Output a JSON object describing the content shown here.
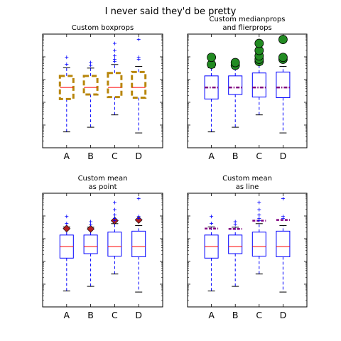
{
  "figure_title": "I never said they'd be pretty",
  "chart_data": [
    {
      "type": "box",
      "title": "Custom boxprops",
      "categories": [
        "A",
        "B",
        "C",
        "D"
      ],
      "yscale": "log",
      "ylim": [
        0.1,
        10000
      ],
      "ytick_labels": "none",
      "style": {
        "box_color": "#b8860b",
        "box_dash": "dashed",
        "median_color": "#ff0000",
        "median_dash": "solid",
        "whisker_color": "#0000ff",
        "flier_marker": "+",
        "flier_color": "#0000ff"
      },
      "series": [
        {
          "name": "A",
          "whislo": 0.5,
          "q1": 14,
          "med": 45,
          "q3": 145,
          "whishi": 330,
          "fliers": [
            470,
            950
          ]
        },
        {
          "name": "B",
          "whislo": 0.8,
          "q1": 22,
          "med": 45,
          "q3": 145,
          "whishi": 320,
          "fliers": [
            420,
            560
          ]
        },
        {
          "name": "C",
          "whislo": 2.8,
          "q1": 17,
          "med": 45,
          "q3": 195,
          "whishi": 460,
          "fliers": [
            620,
            780,
            1100,
            1900,
            3900
          ]
        },
        {
          "name": "D",
          "whislo": 0.45,
          "q1": 16,
          "med": 45,
          "q3": 215,
          "whishi": 380,
          "fliers": [
            780,
            950,
            5800
          ]
        }
      ],
      "show_mean": false
    },
    {
      "type": "box",
      "title": "Custom medianprops\nand flierprops",
      "categories": [
        "A",
        "B",
        "C",
        "D"
      ],
      "yscale": "log",
      "ylim": [
        0.1,
        10000
      ],
      "ytick_labels": "none",
      "style": {
        "box_color": "#0000ff",
        "box_dash": "solid",
        "median_color": "#800080",
        "median_dash": "dashdot",
        "whisker_color": "#0000ff",
        "flier_marker": "o",
        "flier_color": "#228b22"
      },
      "series": [
        {
          "name": "A",
          "whislo": 0.5,
          "q1": 14,
          "med": 45,
          "q3": 145,
          "whishi": 330,
          "fliers": [
            470,
            950
          ]
        },
        {
          "name": "B",
          "whislo": 0.8,
          "q1": 22,
          "med": 45,
          "q3": 145,
          "whishi": 320,
          "fliers": [
            420,
            560
          ]
        },
        {
          "name": "C",
          "whislo": 2.8,
          "q1": 17,
          "med": 45,
          "q3": 195,
          "whishi": 460,
          "fliers": [
            620,
            780,
            1100,
            1900,
            3900
          ]
        },
        {
          "name": "D",
          "whislo": 0.45,
          "q1": 16,
          "med": 45,
          "q3": 215,
          "whishi": 380,
          "fliers": [
            780,
            950,
            5800
          ]
        }
      ],
      "show_mean": false
    },
    {
      "type": "box",
      "title": "Custom mean\nas point",
      "categories": [
        "A",
        "B",
        "C",
        "D"
      ],
      "yscale": "log",
      "ylim": [
        0.1,
        10000
      ],
      "ytick_labels": "none",
      "style": {
        "box_color": "#0000ff",
        "box_dash": "solid",
        "median_color": "#ff0000",
        "median_dash": "solid",
        "whisker_color": "#0000ff",
        "flier_marker": "+",
        "flier_color": "#0000ff",
        "mean_marker": "diamond",
        "mean_color": "#b22222"
      },
      "series": [
        {
          "name": "A",
          "whislo": 0.5,
          "q1": 14,
          "med": 45,
          "q3": 145,
          "whishi": 330,
          "fliers": [
            470,
            950
          ],
          "mean": 280
        },
        {
          "name": "B",
          "whislo": 0.8,
          "q1": 22,
          "med": 45,
          "q3": 145,
          "whishi": 320,
          "fliers": [
            420,
            560
          ],
          "mean": 270
        },
        {
          "name": "C",
          "whislo": 2.8,
          "q1": 17,
          "med": 45,
          "q3": 195,
          "whishi": 460,
          "fliers": [
            620,
            780,
            1100,
            1900,
            3900
          ],
          "mean": 620
        },
        {
          "name": "D",
          "whislo": 0.45,
          "q1": 16,
          "med": 45,
          "q3": 215,
          "whishi": 380,
          "fliers": [
            780,
            950,
            5800
          ],
          "mean": 670
        }
      ],
      "show_mean": "point"
    },
    {
      "type": "box",
      "title": "Custom mean\nas line",
      "categories": [
        "A",
        "B",
        "C",
        "D"
      ],
      "yscale": "log",
      "ylim": [
        0.1,
        10000
      ],
      "ytick_labels": "none",
      "style": {
        "box_color": "#0000ff",
        "box_dash": "solid",
        "median_color": "#ff0000",
        "median_dash": "solid",
        "whisker_color": "#0000ff",
        "flier_marker": "+",
        "flier_color": "#0000ff",
        "mean_line_color": "#800080",
        "mean_line_dash": "dashed"
      },
      "series": [
        {
          "name": "A",
          "whislo": 0.5,
          "q1": 14,
          "med": 45,
          "q3": 145,
          "whishi": 330,
          "fliers": [
            470,
            950
          ],
          "mean": 280
        },
        {
          "name": "B",
          "whislo": 0.8,
          "q1": 22,
          "med": 45,
          "q3": 145,
          "whishi": 320,
          "fliers": [
            420,
            560
          ],
          "mean": 270
        },
        {
          "name": "C",
          "whislo": 2.8,
          "q1": 17,
          "med": 45,
          "q3": 195,
          "whishi": 460,
          "fliers": [
            620,
            780,
            1100,
            1900,
            3900
          ],
          "mean": 620
        },
        {
          "name": "D",
          "whislo": 0.45,
          "q1": 16,
          "med": 45,
          "q3": 215,
          "whishi": 380,
          "fliers": [
            780,
            950,
            5800
          ],
          "mean": 670
        }
      ],
      "show_mean": "line"
    }
  ]
}
